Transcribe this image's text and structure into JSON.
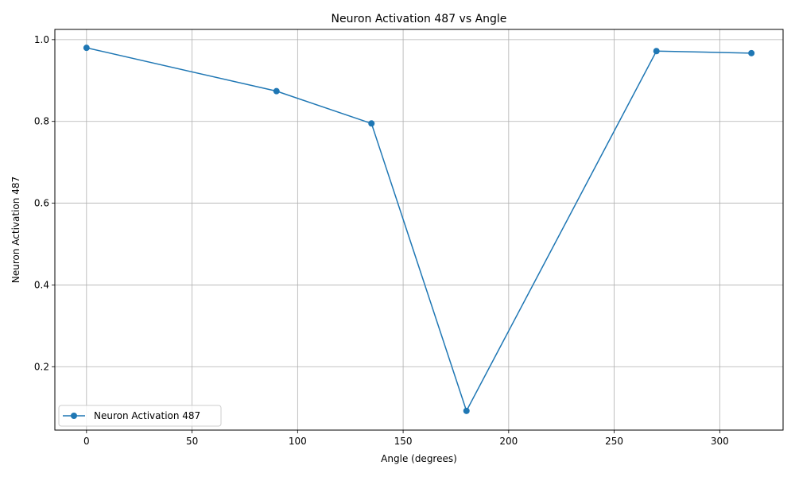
{
  "chart_data": {
    "type": "line",
    "title": "Neuron Activation 487 vs Angle",
    "xlabel": "Angle (degrees)",
    "ylabel": "Neuron Activation 487",
    "xlim": [
      -15,
      330
    ],
    "ylim": [
      0.045,
      1.025
    ],
    "xticks": [
      0,
      50,
      100,
      150,
      200,
      250,
      300
    ],
    "yticks": [
      0.2,
      0.4,
      0.6,
      0.8,
      1.0
    ],
    "xtick_labels": [
      "0",
      "50",
      "100",
      "150",
      "200",
      "250",
      "300"
    ],
    "ytick_labels": [
      "0.2",
      "0.4",
      "0.6",
      "0.8",
      "1.0"
    ],
    "grid": true,
    "legend_position": "lower-left",
    "series": [
      {
        "name": "Neuron Activation 487",
        "color": "#1f77b4",
        "marker": "circle",
        "x": [
          0,
          90,
          135,
          180,
          270,
          315
        ],
        "y": [
          0.98,
          0.874,
          0.795,
          0.092,
          0.972,
          0.967
        ]
      }
    ]
  }
}
